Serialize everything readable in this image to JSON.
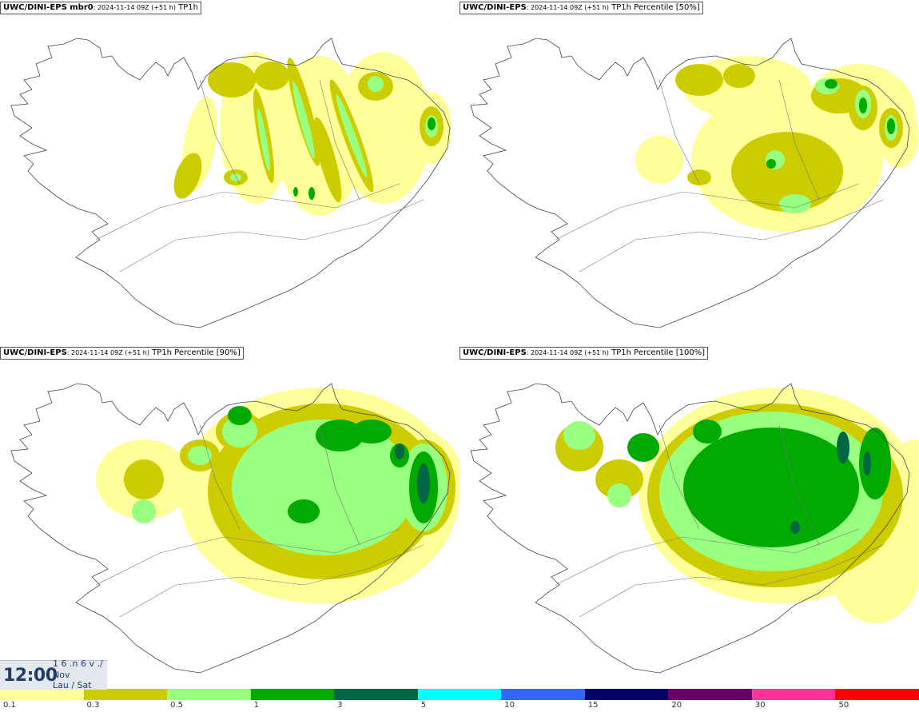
{
  "panels": [
    {
      "model": "UWC/DINI-EPS mbr0",
      "run": ": 2024-11-14 09Z (+51 h)",
      "field": " TP1h"
    },
    {
      "model": "UWC/DINI-EPS",
      "run": ": 2024-11-14 09Z (+51 h)",
      "field": " TP1h Percentile [50%]"
    },
    {
      "model": "UWC/DINI-EPS",
      "run": ": 2024-11-14 09Z (+51 h)",
      "field": " TP1h Percentile [90%]"
    },
    {
      "model": "UWC/DINI-EPS",
      "run": ": 2024-11-14 09Z (+51 h)",
      "field": " TP1h Percentile [100%]"
    }
  ],
  "valid_time": {
    "time": "12:00",
    "line1": "1 6 .n 6 v ./",
    "line2": "Nov",
    "line3": "Lau / Sat"
  },
  "legend": {
    "colors": [
      "#ffff99",
      "#cccc00",
      "#99ff80",
      "#00aa00",
      "#006644",
      "#00ffff",
      "#3366ff",
      "#000066",
      "#660066",
      "#ff3399",
      "#ff0000"
    ],
    "labels": [
      "0.1",
      "0.3",
      "0.5",
      "1",
      "3",
      "5",
      "10",
      "15",
      "20",
      "30",
      "50"
    ]
  }
}
